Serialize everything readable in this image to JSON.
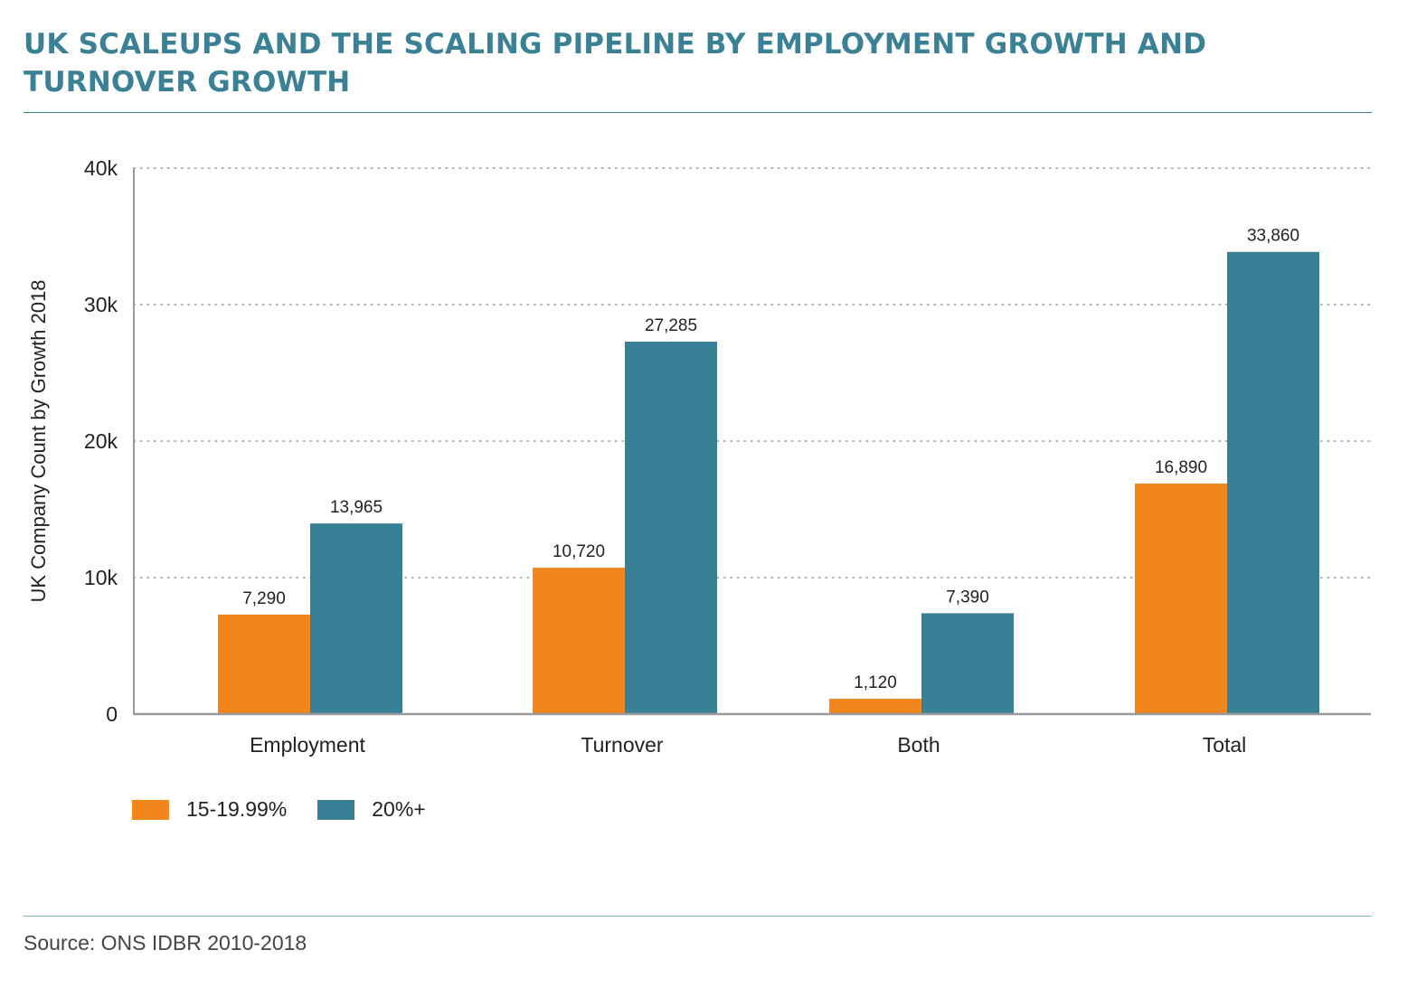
{
  "header": {
    "title": "UK SCALEUPS AND THE SCALING PIPELINE BY EMPLOYMENT GROWTH AND TURNOVER GROWTH"
  },
  "colors": {
    "accent": "#3a8196",
    "series_a": "#f0861c",
    "series_b": "#378096"
  },
  "chart_data": {
    "type": "bar",
    "categories": [
      "Employment",
      "Turnover",
      "Both",
      "Total"
    ],
    "series": [
      {
        "name": "15-19.99%",
        "values": [
          7290,
          10720,
          1120,
          16890
        ],
        "labels": [
          "7,290",
          "10,720",
          "1,120",
          "16,890"
        ]
      },
      {
        "name": "20%+",
        "values": [
          13965,
          27285,
          7390,
          33860
        ],
        "labels": [
          "13,965",
          "27,285",
          "7,390",
          "33,860"
        ]
      }
    ],
    "ylabel": "UK Company Count by Growth 2018",
    "xlabel": "",
    "ylim": [
      0,
      40000
    ],
    "yticks": [
      0,
      10000,
      20000,
      30000,
      40000
    ],
    "ytick_labels": [
      "0",
      "10k",
      "20k",
      "30k",
      "40k"
    ],
    "grid": "dotted horizontal",
    "legend_position": "bottom-left"
  },
  "footer": {
    "source": "Source: ONS IDBR 2010-2018"
  }
}
